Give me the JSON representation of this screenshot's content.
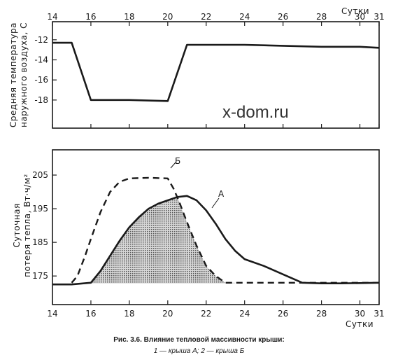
{
  "watermark": "x-dom.ru",
  "caption": {
    "title": "Рис. 3.6. Влияние тепловой массивности крыши:",
    "legend": "1 — крыша А; 2 — крыша Б"
  },
  "chart_data": [
    {
      "type": "line",
      "xlabel": "Сутки",
      "ylabel_line1": "Средняя температура",
      "ylabel_line2": "наружного воздуха, С",
      "x_ticks": [
        14,
        16,
        18,
        20,
        22,
        24,
        26,
        28,
        30,
        31
      ],
      "y_ticks": [
        -12,
        -14,
        -16,
        -18
      ],
      "xlim": [
        14,
        31
      ],
      "ylim": [
        -20.8,
        -10.2
      ],
      "grid": false,
      "series": [
        {
          "x": [
            14,
            15,
            16,
            18,
            20,
            21,
            22,
            24,
            26,
            28,
            30,
            31
          ],
          "y": [
            -12.3,
            -12.3,
            -18.0,
            -18.0,
            -18.1,
            -12.5,
            -12.5,
            -12.5,
            -12.6,
            -12.7,
            -12.7,
            -12.8
          ]
        }
      ]
    },
    {
      "type": "line",
      "xlabel": "Сутки",
      "ylabel_line1": "Суточная",
      "ylabel_line2": "потеря тепла, Вт·ч/м²",
      "x_ticks": [
        14,
        16,
        18,
        20,
        22,
        24,
        26,
        28,
        30,
        31
      ],
      "y_ticks": [
        175,
        185,
        195,
        205
      ],
      "xlim": [
        14,
        31
      ],
      "ylim": [
        166.5,
        212.5
      ],
      "grid": false,
      "series": [
        {
          "name": "А",
          "x": [
            14,
            15,
            16,
            16.5,
            17,
            17.5,
            18,
            18.5,
            19,
            19.5,
            20,
            20.5,
            21,
            21.5,
            22,
            22.5,
            23,
            23.5,
            24,
            25,
            26,
            27,
            28,
            29,
            30,
            31
          ],
          "y": [
            172.5,
            172.5,
            173,
            176.5,
            181,
            185.5,
            189.5,
            192.5,
            195,
            196.5,
            197.5,
            198.5,
            198.8,
            197.5,
            194.5,
            190.5,
            186,
            182.5,
            180,
            178,
            175.5,
            173,
            172.8,
            172.8,
            172.9,
            173
          ]
        },
        {
          "name": "Б",
          "x": [
            15,
            15.3,
            15.7,
            16,
            16.5,
            17,
            17.5,
            18,
            19,
            20,
            20.3,
            20.6,
            21,
            21.5,
            22,
            22.5,
            23,
            24,
            26,
            28,
            30,
            31
          ],
          "y": [
            173,
            175,
            181,
            186,
            194,
            200,
            203,
            204,
            204.2,
            204,
            201,
            197,
            191,
            184,
            178,
            175,
            173,
            173,
            173,
            173,
            173,
            173
          ]
        }
      ],
      "annotations": [
        "А",
        "Б"
      ]
    }
  ]
}
